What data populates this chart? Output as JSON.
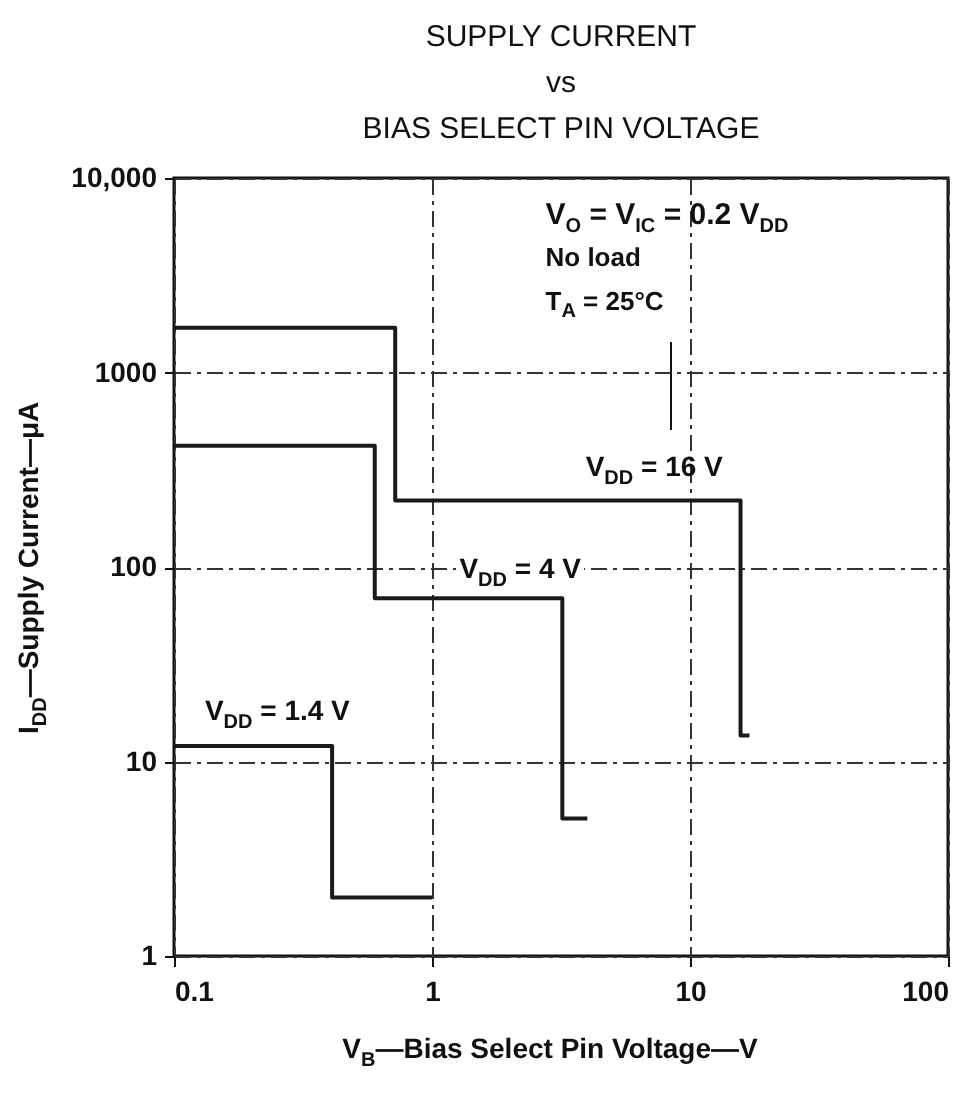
{
  "chart_data": {
    "type": "step",
    "title": "SUPPLY CURRENT\nvs\nBIAS SELECT PIN VOLTAGE",
    "xlabel": "V$_{B}$—Bias Select Pin Voltage—V",
    "ylabel": "I$_{DD}$—Supply Current—μA",
    "annotations": [
      "V$_{O}$ = V$_{IC}$ = 0.2 V$_{DD}$",
      "No load",
      "T$_{A}$ = 25°C"
    ],
    "series": [
      {
        "name": "V$_{DD}$ = 16 V",
        "color": "#1a1a1a",
        "x": [
          0.1,
          0.72,
          15.7,
          17
        ],
        "values": [
          1700,
          220,
          13.6,
          13.6
        ]
      },
      {
        "name": "V$_{DD}$ = 4 V",
        "color": "#1a1a1a",
        "x": [
          0.1,
          0.6,
          3.2,
          4
        ],
        "values": [
          420,
          69,
          5.1,
          5.1
        ]
      },
      {
        "name": "V$_{DD}$ = 1.4 V",
        "color": "#1a1a1a",
        "x": [
          0.1,
          0.41,
          1
        ],
        "values": [
          12,
          2,
          2
        ]
      }
    ],
    "log": "xy",
    "xlim": [
      0.1,
      100
    ],
    "ylim": [
      1,
      10000
    ],
    "xticks": [
      0.1,
      1,
      10,
      100
    ],
    "yticks": [
      1,
      10,
      100,
      1000,
      {
        "value": 10000,
        "label": "10,000"
      }
    ],
    "grid": true,
    "legend": false,
    "marker": "none",
    "line_style": "solid"
  }
}
